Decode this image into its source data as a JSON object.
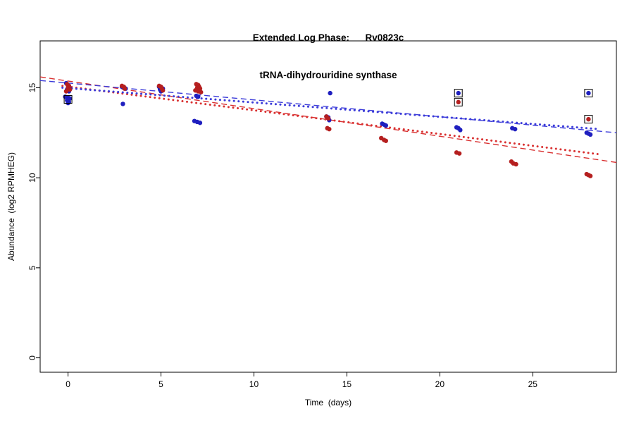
{
  "title": {
    "line1": "Extended Log Phase:      Rv0823c",
    "line2": "tRNA-dihydrouridine synthase"
  },
  "chart_data": {
    "type": "scatter",
    "title": "Extended Log Phase: Rv0823c / tRNA-dihydrouridine synthase",
    "xlabel": "Time  (days)",
    "ylabel": "Abundance  (log2 RPMHEG)",
    "xlim": [
      -1.5,
      29.5
    ],
    "ylim": [
      -0.8,
      17.6
    ],
    "xticks": [
      0,
      5,
      10,
      15,
      20,
      25
    ],
    "yticks": [
      0,
      5,
      10,
      15
    ],
    "grid": false,
    "legend": "none",
    "series": [
      {
        "name": "blue",
        "color": "#1f1fbf",
        "points": [
          [
            -0.1,
            15.25
          ],
          [
            0.05,
            15.1
          ],
          [
            0,
            15.0
          ],
          [
            0.1,
            14.95
          ],
          [
            -0.05,
            14.9
          ],
          [
            0.05,
            14.8
          ],
          [
            -0.15,
            14.5
          ],
          [
            0,
            14.45
          ],
          [
            0.1,
            14.4
          ],
          [
            -0.05,
            14.3
          ],
          [
            0.05,
            14.2
          ],
          [
            0,
            14.15
          ],
          [
            2.9,
            15.05
          ],
          [
            3,
            15.0
          ],
          [
            3.1,
            14.95
          ],
          [
            2.95,
            14.1
          ],
          [
            4.9,
            15.05
          ],
          [
            5,
            15.0
          ],
          [
            5.1,
            14.95
          ],
          [
            4.95,
            14.9
          ],
          [
            5.05,
            14.85
          ],
          [
            5,
            14.8
          ],
          [
            6.9,
            14.55
          ],
          [
            7,
            14.5
          ],
          [
            6.8,
            13.15
          ],
          [
            6.95,
            13.1
          ],
          [
            7.1,
            13.05
          ],
          [
            14.1,
            14.7
          ],
          [
            13.9,
            13.4
          ],
          [
            14,
            13.35
          ],
          [
            14.05,
            13.2
          ],
          [
            16.9,
            13.0
          ],
          [
            17,
            12.95
          ],
          [
            17.1,
            12.9
          ],
          [
            20.9,
            12.8
          ],
          [
            21,
            12.75
          ],
          [
            21.1,
            12.65
          ],
          [
            23.9,
            12.75
          ],
          [
            24.05,
            12.7
          ],
          [
            27.9,
            12.5
          ],
          [
            28,
            12.45
          ],
          [
            28.1,
            12.4
          ]
        ],
        "flagged": [
          [
            0,
            14.35
          ],
          [
            21,
            14.7
          ],
          [
            28,
            14.7
          ]
        ]
      },
      {
        "name": "red",
        "color": "#b51f1f",
        "points": [
          [
            -0.05,
            15.2
          ],
          [
            0.05,
            15.1
          ],
          [
            0,
            15.0
          ],
          [
            0.1,
            14.9
          ],
          [
            -0.1,
            14.8
          ],
          [
            2.9,
            15.1
          ],
          [
            3,
            15.05
          ],
          [
            3.05,
            14.95
          ],
          [
            4.9,
            15.1
          ],
          [
            5,
            15.05
          ],
          [
            5.05,
            14.95
          ],
          [
            5.1,
            14.85
          ],
          [
            6.9,
            15.2
          ],
          [
            7,
            15.15
          ],
          [
            7.05,
            15.05
          ],
          [
            6.95,
            15.0
          ],
          [
            7.1,
            14.95
          ],
          [
            6.85,
            14.85
          ],
          [
            7,
            14.8
          ],
          [
            7.15,
            14.75
          ],
          [
            13.9,
            13.4
          ],
          [
            14,
            13.3
          ],
          [
            13.95,
            12.75
          ],
          [
            14.05,
            12.7
          ],
          [
            16.85,
            12.2
          ],
          [
            17,
            12.1
          ],
          [
            17.1,
            12.05
          ],
          [
            20.9,
            11.4
          ],
          [
            21.05,
            11.35
          ],
          [
            23.85,
            10.9
          ],
          [
            23.95,
            10.8
          ],
          [
            24.1,
            10.75
          ],
          [
            27.9,
            10.2
          ],
          [
            28,
            10.15
          ],
          [
            28.1,
            10.1
          ]
        ],
        "flagged": [
          [
            21,
            14.2
          ],
          [
            28,
            13.25
          ]
        ]
      }
    ],
    "trend_lines": [
      {
        "series": "red",
        "style": "dashed",
        "color": "#d93030",
        "width": 1.4,
        "x": [
          -1.5,
          29.5
        ],
        "y": [
          15.6,
          10.85
        ]
      },
      {
        "series": "blue",
        "style": "dashed",
        "color": "#3b3bd9",
        "width": 1.4,
        "x": [
          -1.5,
          29.5
        ],
        "y": [
          15.4,
          12.5
        ]
      },
      {
        "series": "red",
        "style": "dotted",
        "color": "#d93030",
        "width": 3,
        "x": [
          -0.3,
          28.6
        ],
        "y": [
          15.1,
          11.3
        ]
      },
      {
        "series": "blue",
        "style": "dotted",
        "color": "#3b3bd9",
        "width": 3,
        "x": [
          -0.3,
          28.6
        ],
        "y": [
          15.0,
          12.7
        ]
      }
    ],
    "flag_marker": "open-black-square"
  }
}
